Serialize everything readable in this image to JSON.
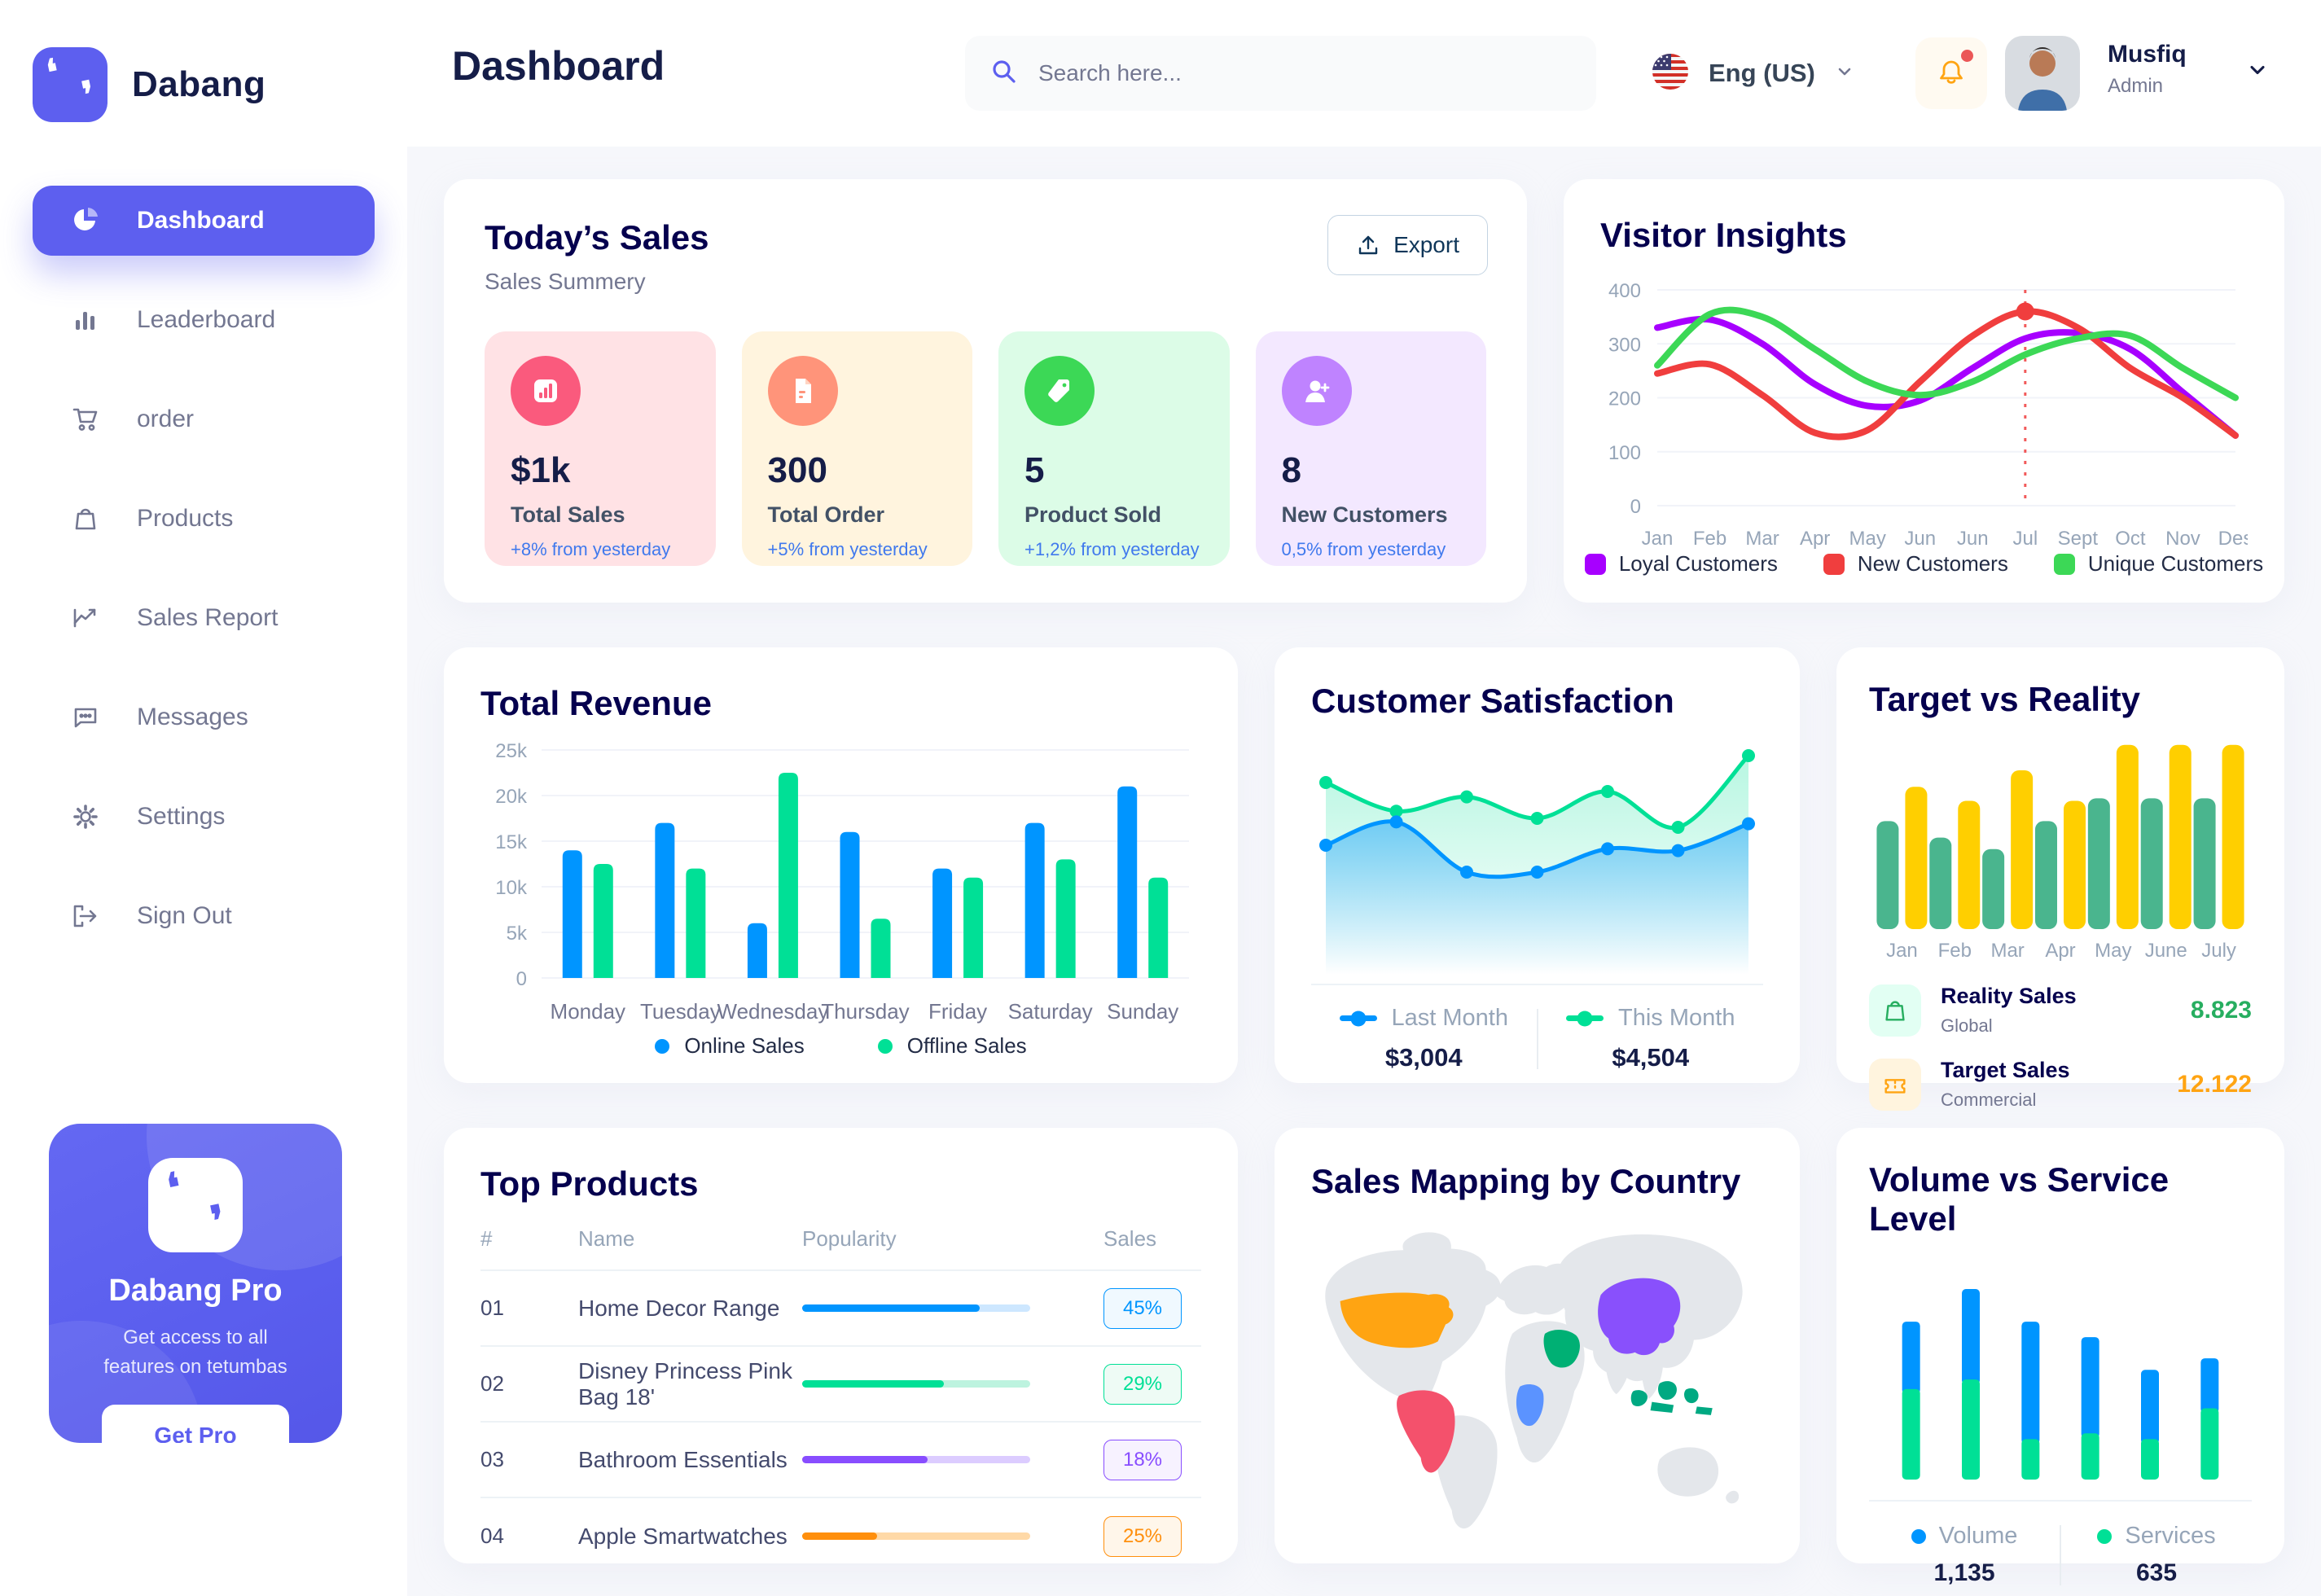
{
  "app": {
    "brand": "Dabang"
  },
  "topbar": {
    "page_title": "Dashboard",
    "search_placeholder": "Search here...",
    "language": "Eng (US)",
    "user_name": "Musfiq",
    "user_role": "Admin"
  },
  "sidebar": {
    "items": [
      {
        "label": "Dashboard",
        "icon": "pie-chart-icon",
        "active": true
      },
      {
        "label": "Leaderboard",
        "icon": "bar-chart-icon",
        "active": false
      },
      {
        "label": "order",
        "icon": "cart-icon",
        "active": false
      },
      {
        "label": "Products",
        "icon": "bag-icon",
        "active": false
      },
      {
        "label": "Sales Report",
        "icon": "line-chart-icon",
        "active": false
      },
      {
        "label": "Messages",
        "icon": "chat-icon",
        "active": false
      },
      {
        "label": "Settings",
        "icon": "gear-icon",
        "active": false
      },
      {
        "label": "Sign Out",
        "icon": "sign-out-icon",
        "active": false
      }
    ],
    "promo": {
      "title": "Dabang Pro",
      "subtitle": "Get access to all features on tetumbas",
      "button_label": "Get Pro"
    }
  },
  "todays_sales": {
    "title": "Today’s Sales",
    "subtitle": "Sales Summery",
    "export_label": "Export",
    "stats": [
      {
        "value": "$1k",
        "label": "Total Sales",
        "delta": "+8% from yesterday",
        "bg": "#FFE2E5",
        "icon_bg": "#FA5A7D",
        "icon": "chart-bars-icon"
      },
      {
        "value": "300",
        "label": "Total Order",
        "delta": "+5% from yesterday",
        "bg": "#FFF4DE",
        "icon_bg": "#FF947A",
        "icon": "order-file-icon"
      },
      {
        "value": "5",
        "label": "Product Sold",
        "delta": "+1,2% from yesterday",
        "bg": "#DCFCE7",
        "icon_bg": "#3CD856",
        "icon": "tag-icon"
      },
      {
        "value": "8",
        "label": "New Customers",
        "delta": "0,5% from yesterday",
        "bg": "#F3E8FF",
        "icon_bg": "#BF83FF",
        "icon": "new-customer-icon"
      }
    ]
  },
  "top_products": {
    "title": "Top Products",
    "columns": [
      "#",
      "Name",
      "Popularity",
      "Sales"
    ],
    "rows": [
      {
        "num": "01",
        "name": "Home Decor Range",
        "fill_pct": 78,
        "sales": "45%",
        "color": "#0095FF",
        "track": "#CDE7FF",
        "badge_bg": "#F0F9FF"
      },
      {
        "num": "02",
        "name": "Disney Princess Pink Bag 18'",
        "fill_pct": 62,
        "sales": "29%",
        "color": "#00E096",
        "track": "#BDF3DF",
        "badge_bg": "#EEFBF5"
      },
      {
        "num": "03",
        "name": "Bathroom Essentials",
        "fill_pct": 55,
        "sales": "18%",
        "color": "#884DFF",
        "track": "#DCCCFF",
        "badge_bg": "#F7F2FF"
      },
      {
        "num": "04",
        "name": "Apple Smartwatches",
        "fill_pct": 33,
        "sales": "25%",
        "color": "#FF8F0D",
        "track": "#FFD9A7",
        "badge_bg": "#FFF6EA"
      }
    ]
  },
  "sales_map": {
    "title": "Sales Mapping by Country",
    "country_colors": {
      "usa": "#FFA412",
      "brazil": "#F4516C",
      "congo": "#5B93FF",
      "saudi_arabia": "#00B074",
      "china": "#8950FC",
      "indonesia": "#00A982"
    }
  },
  "chart_data": [
    {
      "id": "visitor_insights",
      "type": "line",
      "title": "Visitor Insights",
      "x": [
        "Jan",
        "Feb",
        "Mar",
        "Apr",
        "May",
        "Jun",
        "Jun",
        "Jul",
        "Sept",
        "Oct",
        "Nov",
        "Des"
      ],
      "ylim": [
        0,
        400
      ],
      "yticks": [
        0,
        100,
        200,
        300,
        400
      ],
      "grid": true,
      "legend_position": "bottom",
      "series": [
        {
          "name": "Loyal Customers",
          "color": "#A700FF",
          "values": [
            330,
            345,
            300,
            225,
            185,
            195,
            255,
            310,
            320,
            290,
            210,
            130
          ]
        },
        {
          "name": "New Customers",
          "color": "#F03E3E",
          "values": [
            245,
            262,
            205,
            135,
            140,
            230,
            315,
            360,
            330,
            255,
            200,
            130
          ]
        },
        {
          "name": "Unique Customers",
          "color": "#3CD856",
          "values": [
            260,
            355,
            350,
            290,
            230,
            205,
            230,
            280,
            310,
            315,
            255,
            200
          ]
        }
      ],
      "highlight": {
        "x_index": 7,
        "series": "New Customers",
        "marker_color": "#F03E3E"
      }
    },
    {
      "id": "total_revenue",
      "type": "bar",
      "title": "Total Revenue",
      "categories": [
        "Monday",
        "Tuesday",
        "Wednesday",
        "Thursday",
        "Friday",
        "Saturday",
        "Sunday"
      ],
      "ylim": [
        0,
        25000
      ],
      "ytick_labels": [
        "0",
        "5k",
        "10k",
        "15k",
        "20k",
        "25k"
      ],
      "grid": true,
      "legend_position": "bottom",
      "series": [
        {
          "name": "Online Sales",
          "color": "#0095FF",
          "values": [
            14000,
            17000,
            6000,
            16000,
            12000,
            17000,
            21000
          ]
        },
        {
          "name": "Offline Sales",
          "color": "#00E096",
          "values": [
            12500,
            12000,
            22500,
            6500,
            11000,
            13000,
            11000
          ]
        }
      ]
    },
    {
      "id": "customer_satisfaction",
      "type": "area",
      "title": "Customer Satisfaction",
      "ylim": [
        0,
        100
      ],
      "legend_position": "bottom",
      "series": [
        {
          "name": "Last Month",
          "color": "#0095FF",
          "total": "$3,004",
          "values": [
            45,
            58,
            30,
            30,
            43,
            42,
            57
          ]
        },
        {
          "name": "This Month",
          "color": "#00E096",
          "total": "$4,504",
          "values": [
            80,
            64,
            72,
            60,
            75,
            55,
            95
          ]
        }
      ]
    },
    {
      "id": "target_vs_reality",
      "type": "bar",
      "title": "Target vs Reality",
      "categories": [
        "Jan",
        "Feb",
        "Mar",
        "Apr",
        "May",
        "June",
        "July"
      ],
      "ylim": [
        0,
        15
      ],
      "series": [
        {
          "name": "Reality Sales",
          "sublabel": "Global",
          "color": "#4AB58E",
          "icon_bg": "#E2FFF3",
          "value_label": "8.823",
          "value_color": "#27AE60",
          "values": [
            8.5,
            7.2,
            6.3,
            8.5,
            10.3,
            10.3,
            10.3
          ]
        },
        {
          "name": "Target Sales",
          "sublabel": "Commercial",
          "color": "#FFCF00",
          "icon_bg": "#FFF4DE",
          "value_label": "12.122",
          "value_color": "#FFA412",
          "values": [
            11.2,
            10.1,
            12.5,
            10.1,
            14.5,
            14.5,
            14.5
          ]
        }
      ]
    },
    {
      "id": "volume_vs_service",
      "type": "stacked_bar",
      "title": "Volume vs Service Level",
      "ylim": [
        0,
        110
      ],
      "legend_position": "bottom",
      "series": [
        {
          "name": "Volume",
          "color": "#0095FF",
          "total": "1,135",
          "values": [
            35,
            47,
            61,
            50,
            36,
            26
          ]
        },
        {
          "name": "Services",
          "color": "#00E096",
          "total": "635",
          "values": [
            47,
            52,
            21,
            24,
            21,
            37
          ]
        }
      ]
    }
  ]
}
